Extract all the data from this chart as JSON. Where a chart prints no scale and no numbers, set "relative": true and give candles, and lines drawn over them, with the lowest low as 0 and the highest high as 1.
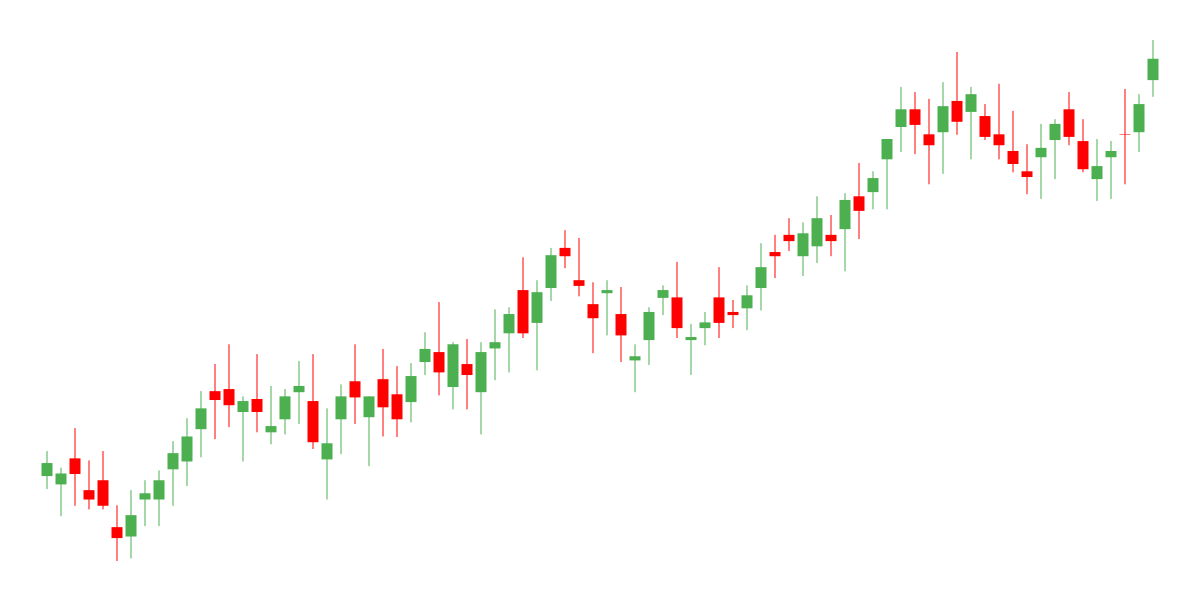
{
  "chart_data": {
    "type": "candlestick",
    "relative": true,
    "grid": false,
    "categories": [
      null,
      null,
      null,
      null,
      null,
      null,
      null,
      null,
      null,
      null,
      null,
      null,
      null,
      null,
      null,
      null,
      null,
      null,
      null,
      null,
      null,
      null,
      null,
      null,
      null,
      null,
      null,
      null,
      null,
      null,
      null,
      null,
      null,
      null,
      null,
      null,
      null,
      null,
      null,
      null,
      null,
      null,
      null,
      null,
      null,
      null,
      null,
      null,
      null,
      null,
      null,
      null,
      null,
      null,
      null,
      null,
      null,
      null,
      null,
      null,
      null,
      null,
      null,
      null,
      null,
      null,
      null,
      null,
      null,
      null,
      null,
      null,
      null,
      null,
      null,
      null,
      null,
      null,
      null,
      null
    ],
    "ohlc": [
      [
        0.163,
        0.211,
        0.138,
        0.188
      ],
      [
        0.147,
        0.179,
        0.086,
        0.168
      ],
      [
        0.197,
        0.255,
        0.106,
        0.167
      ],
      [
        0.136,
        0.193,
        0.099,
        0.118
      ],
      [
        0.155,
        0.211,
        0.099,
        0.106
      ],
      [
        0.065,
        0.107,
        0.0,
        0.044
      ],
      [
        0.047,
        0.136,
        0.005,
        0.088
      ],
      [
        0.118,
        0.155,
        0.067,
        0.13
      ],
      [
        0.118,
        0.174,
        0.067,
        0.155
      ],
      [
        0.176,
        0.23,
        0.106,
        0.207
      ],
      [
        0.191,
        0.274,
        0.144,
        0.239
      ],
      [
        0.253,
        0.326,
        0.199,
        0.293
      ],
      [
        0.326,
        0.378,
        0.234,
        0.309
      ],
      [
        0.33,
        0.416,
        0.257,
        0.299
      ],
      [
        0.286,
        0.316,
        0.191,
        0.307
      ],
      [
        0.311,
        0.397,
        0.247,
        0.286
      ],
      [
        0.247,
        0.336,
        0.224,
        0.259
      ],
      [
        0.272,
        0.33,
        0.243,
        0.316
      ],
      [
        0.324,
        0.384,
        0.263,
        0.336
      ],
      [
        0.307,
        0.397,
        0.215,
        0.228
      ],
      [
        0.195,
        0.293,
        0.118,
        0.226
      ],
      [
        0.272,
        0.339,
        0.205,
        0.316
      ],
      [
        0.345,
        0.416,
        0.263,
        0.314
      ],
      [
        0.276,
        0.316,
        0.182,
        0.316
      ],
      [
        0.349,
        0.407,
        0.239,
        0.295
      ],
      [
        0.32,
        0.374,
        0.238,
        0.272
      ],
      [
        0.305,
        0.38,
        0.266,
        0.355
      ],
      [
        0.382,
        0.439,
        0.357,
        0.407
      ],
      [
        0.401,
        0.497,
        0.318,
        0.362
      ],
      [
        0.334,
        0.42,
        0.291,
        0.416
      ],
      [
        0.378,
        0.426,
        0.291,
        0.357
      ],
      [
        0.324,
        0.42,
        0.243,
        0.401
      ],
      [
        0.408,
        0.483,
        0.347,
        0.42
      ],
      [
        0.437,
        0.487,
        0.362,
        0.474
      ],
      [
        0.52,
        0.583,
        0.428,
        0.437
      ],
      [
        0.457,
        0.539,
        0.366,
        0.516
      ],
      [
        0.524,
        0.601,
        0.499,
        0.587
      ],
      [
        0.601,
        0.635,
        0.562,
        0.585
      ],
      [
        0.539,
        0.62,
        0.508,
        0.528
      ],
      [
        0.493,
        0.535,
        0.399,
        0.466
      ],
      [
        0.514,
        0.539,
        0.433,
        0.52
      ],
      [
        0.474,
        0.526,
        0.382,
        0.433
      ],
      [
        0.385,
        0.416,
        0.324,
        0.393
      ],
      [
        0.424,
        0.487,
        0.376,
        0.478
      ],
      [
        0.505,
        0.529,
        0.472,
        0.52
      ],
      [
        0.506,
        0.574,
        0.428,
        0.447
      ],
      [
        0.424,
        0.455,
        0.357,
        0.43
      ],
      [
        0.447,
        0.478,
        0.414,
        0.458
      ],
      [
        0.506,
        0.564,
        0.428,
        0.457
      ],
      [
        0.478,
        0.501,
        0.447,
        0.472
      ],
      [
        0.485,
        0.529,
        0.443,
        0.51
      ],
      [
        0.524,
        0.61,
        0.481,
        0.564
      ],
      [
        0.593,
        0.626,
        0.543,
        0.585
      ],
      [
        0.626,
        0.658,
        0.595,
        0.614
      ],
      [
        0.585,
        0.65,
        0.547,
        0.629
      ],
      [
        0.604,
        0.7,
        0.572,
        0.658
      ],
      [
        0.626,
        0.664,
        0.585,
        0.614
      ],
      [
        0.637,
        0.706,
        0.556,
        0.693
      ],
      [
        0.7,
        0.764,
        0.618,
        0.672
      ],
      [
        0.708,
        0.748,
        0.675,
        0.735
      ],
      [
        0.771,
        0.81,
        0.675,
        0.81
      ],
      [
        0.833,
        0.91,
        0.785,
        0.867
      ],
      [
        0.867,
        0.9,
        0.781,
        0.837
      ],
      [
        0.819,
        0.887,
        0.723,
        0.798
      ],
      [
        0.823,
        0.919,
        0.743,
        0.873
      ],
      [
        0.883,
        0.977,
        0.818,
        0.843
      ],
      [
        0.862,
        0.91,
        0.771,
        0.896
      ],
      [
        0.854,
        0.877,
        0.808,
        0.814
      ],
      [
        0.819,
        0.916,
        0.771,
        0.798
      ],
      [
        0.787,
        0.864,
        0.746,
        0.762
      ],
      [
        0.748,
        0.8,
        0.704,
        0.737
      ],
      [
        0.775,
        0.839,
        0.695,
        0.793
      ],
      [
        0.808,
        0.848,
        0.733,
        0.839
      ],
      [
        0.867,
        0.9,
        0.798,
        0.814
      ],
      [
        0.806,
        0.848,
        0.746,
        0.752
      ],
      [
        0.733,
        0.81,
        0.691,
        0.758
      ],
      [
        0.775,
        0.806,
        0.695,
        0.787
      ],
      [
        0.819,
        0.906,
        0.723,
        0.818
      ],
      [
        0.823,
        0.896,
        0.785,
        0.877
      ],
      [
        0.923,
        1.0,
        0.891,
        0.964
      ]
    ],
    "colors": [
      "#4caf50",
      "#4caf50",
      "#ff0000",
      "#ff0000",
      "#ff0000",
      "#ff0000",
      "#4caf50",
      "#4caf50",
      "#4caf50",
      "#4caf50",
      "#4caf50",
      "#4caf50",
      "#ff0000",
      "#ff0000",
      "#4caf50",
      "#ff0000",
      "#4caf50",
      "#4caf50",
      "#4caf50",
      "#ff0000",
      "#4caf50",
      "#4caf50",
      "#ff0000",
      "#4caf50",
      "#ff0000",
      "#ff0000",
      "#4caf50",
      "#4caf50",
      "#ff0000",
      "#4caf50",
      "#ff0000",
      "#4caf50",
      "#4caf50",
      "#4caf50",
      "#ff0000",
      "#4caf50",
      "#4caf50",
      "#ff0000",
      "#ff0000",
      "#ff0000",
      "#4caf50",
      "#ff0000",
      "#4caf50",
      "#4caf50",
      "#4caf50",
      "#ff0000",
      "#4caf50",
      "#4caf50",
      "#ff0000",
      "#ff0000",
      "#4caf50",
      "#4caf50",
      "#ff0000",
      "#ff0000",
      "#4caf50",
      "#4caf50",
      "#ff0000",
      "#4caf50",
      "#ff0000",
      "#4caf50",
      "#4caf50",
      "#4caf50",
      "#ff0000",
      "#ff0000",
      "#4caf50",
      "#ff0000",
      "#4caf50",
      "#ff0000",
      "#ff0000",
      "#ff0000",
      "#ff0000",
      "#4caf50",
      "#4caf50",
      "#ff0000",
      "#ff0000",
      "#4caf50",
      "#4caf50",
      "#ff0000",
      "#4caf50",
      "#4caf50"
    ]
  }
}
